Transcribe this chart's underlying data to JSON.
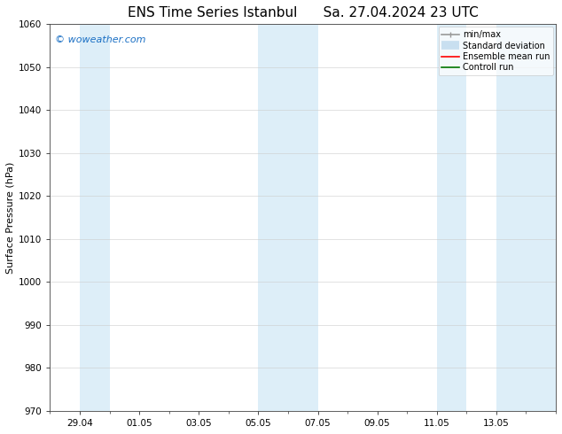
{
  "title_left": "ENS Time Series Istanbul",
  "title_right": "Sa. 27.04.2024 23 UTC",
  "ylabel": "Surface Pressure (hPa)",
  "ylim": [
    970,
    1060
  ],
  "yticks": [
    970,
    980,
    990,
    1000,
    1010,
    1020,
    1030,
    1040,
    1050,
    1060
  ],
  "xtick_labels": [
    "29.04",
    "01.05",
    "03.05",
    "05.05",
    "07.05",
    "09.05",
    "11.05",
    "13.05"
  ],
  "shaded_bands": [
    {
      "xmin": 1.0,
      "xmax": 2.0
    },
    {
      "xmin": 7.0,
      "xmax": 9.0
    },
    {
      "xmin": 13.0,
      "xmax": 14.0
    },
    {
      "xmin": 15.0,
      "xmax": 17.0
    }
  ],
  "band_color": "#ddeef8",
  "xlim": [
    0.0,
    17.0
  ],
  "watermark": "© woweather.com",
  "watermark_color": "#1a6fc4",
  "bg_color": "#ffffff",
  "legend_items": [
    {
      "label": "min/max",
      "color": "#999999",
      "lw": 1.2
    },
    {
      "label": "Standard deviation",
      "color": "#c8dff0",
      "lw": 7
    },
    {
      "label": "Ensemble mean run",
      "color": "#ff0000",
      "lw": 1.2
    },
    {
      "label": "Controll run",
      "color": "#007700",
      "lw": 1.2
    }
  ],
  "title_fontsize": 11,
  "ylabel_fontsize": 8,
  "tick_fontsize": 7.5,
  "legend_fontsize": 7,
  "watermark_fontsize": 8
}
